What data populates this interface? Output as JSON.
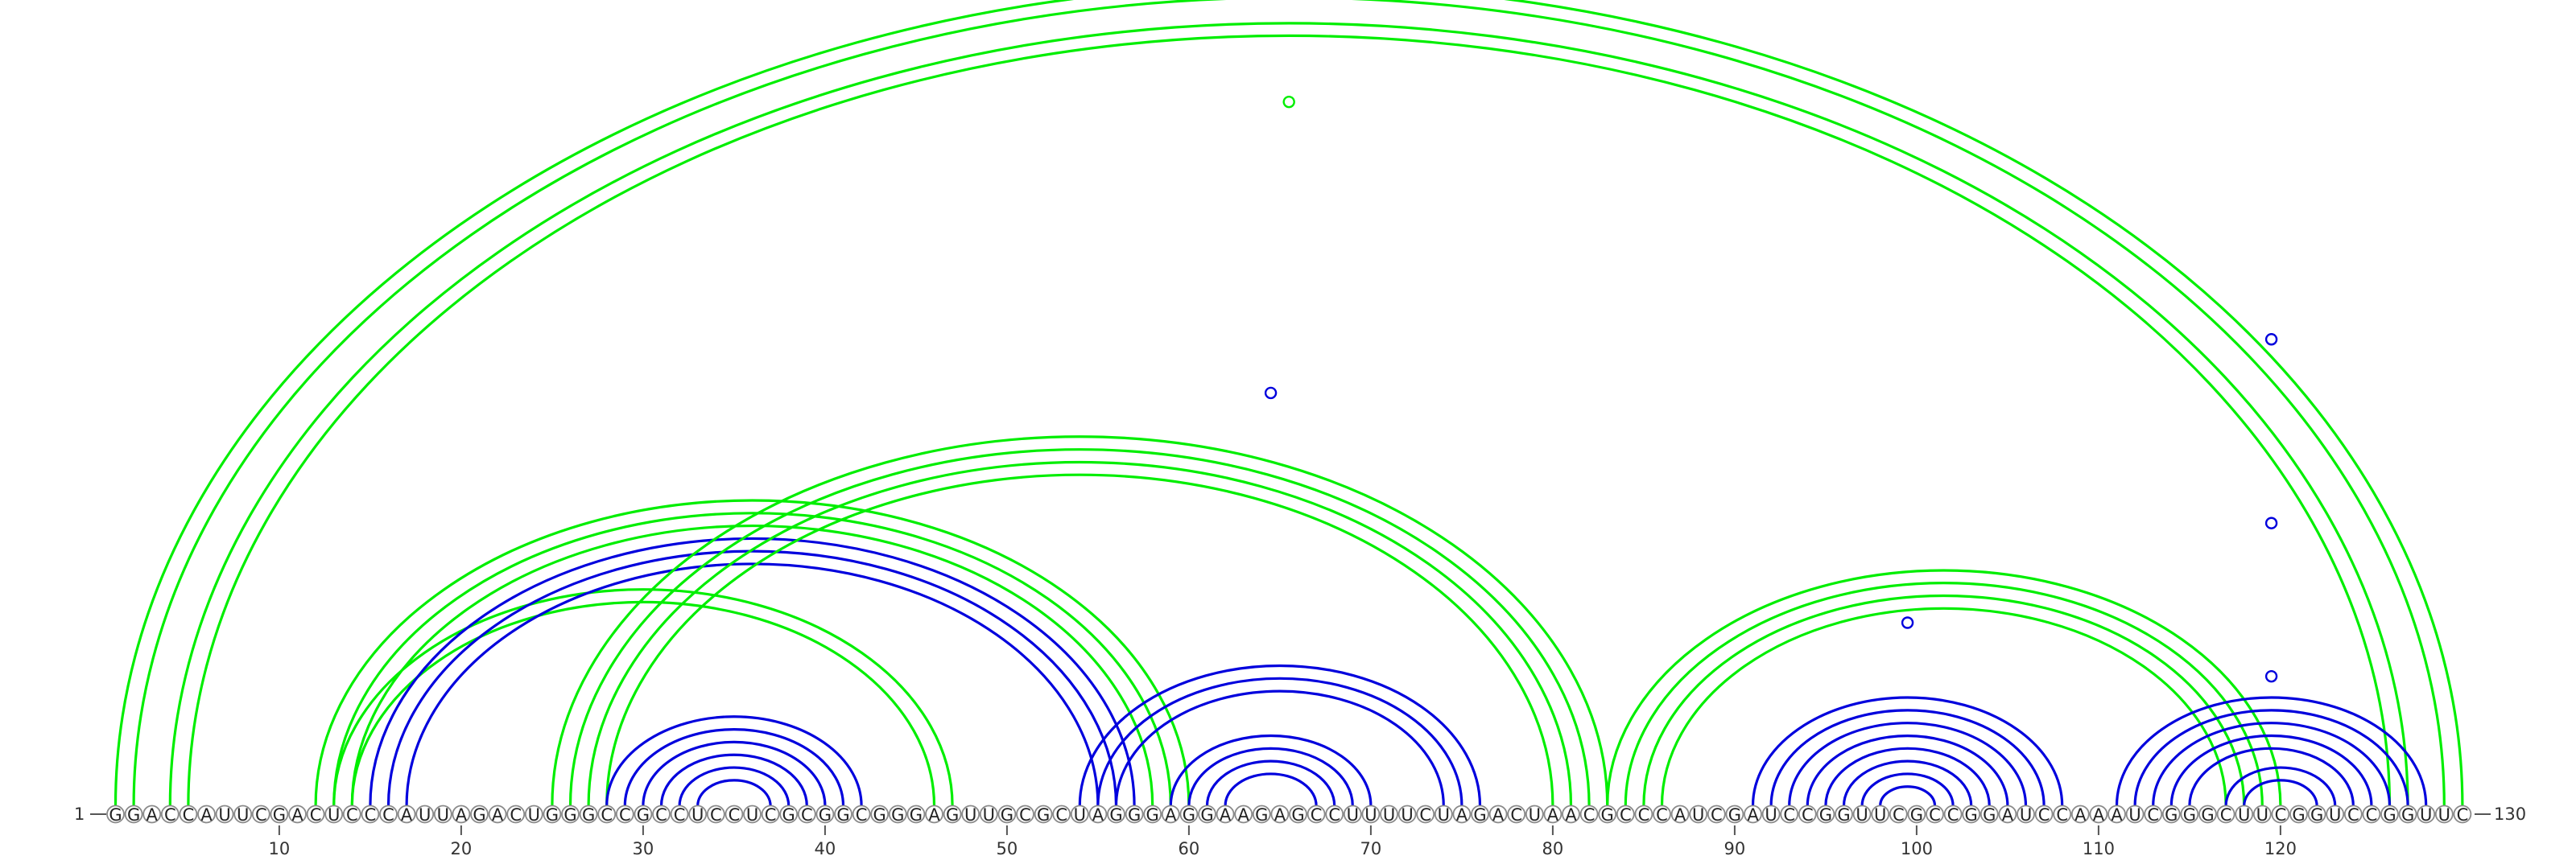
{
  "sequence": "GGACCAUUCGACUCCCAUUAGACUGGGCCGCCUCCUCGCGGCGGGAGUUGCGCUAGGGAGGAAGAGCCUUUUCUAGACUAACGCCCAUCGAUCCGGUUCGCCGGAUCCAAAUCGGGCUUCGGUCCGGUUC",
  "start_label": "1",
  "end_label": "130",
  "ticks": [
    10,
    20,
    30,
    40,
    50,
    60,
    70,
    80,
    90,
    100,
    110,
    120
  ],
  "colors": {
    "green": "#00ee00",
    "blue": "#0000dd"
  },
  "helices": [
    {
      "color": "green",
      "pairs": [
        [
          1,
          130
        ],
        [
          2,
          129
        ],
        [
          4,
          127
        ],
        [
          5,
          126
        ]
      ]
    },
    {
      "color": "green",
      "pairs": [
        [
          12,
          60
        ],
        [
          13,
          59
        ],
        [
          14,
          58
        ]
      ]
    },
    {
      "color": "green",
      "pairs": [
        [
          13,
          47
        ],
        [
          14,
          46
        ]
      ]
    },
    {
      "color": "blue",
      "pairs": [
        [
          15,
          57
        ],
        [
          16,
          56
        ],
        [
          17,
          55
        ]
      ]
    },
    {
      "color": "green",
      "pairs": [
        [
          25,
          83
        ],
        [
          26,
          82
        ],
        [
          27,
          81
        ],
        [
          28,
          80
        ]
      ]
    },
    {
      "color": "blue",
      "pairs": [
        [
          28,
          42
        ],
        [
          29,
          41
        ],
        [
          30,
          40
        ],
        [
          31,
          39
        ],
        [
          32,
          38
        ],
        [
          33,
          37
        ]
      ]
    },
    {
      "color": "blue",
      "pairs": [
        [
          54,
          76
        ],
        [
          55,
          75
        ],
        [
          56,
          74
        ],
        [
          59,
          70
        ],
        [
          60,
          69
        ],
        [
          61,
          68
        ],
        [
          62,
          67
        ]
      ]
    },
    {
      "color": "green",
      "pairs": [
        [
          83,
          120
        ],
        [
          84,
          119
        ],
        [
          85,
          118
        ],
        [
          86,
          117
        ]
      ]
    },
    {
      "color": "blue",
      "pairs": [
        [
          91,
          108
        ],
        [
          92,
          107
        ],
        [
          93,
          106
        ],
        [
          94,
          105
        ],
        [
          95,
          104
        ],
        [
          96,
          103
        ],
        [
          97,
          102
        ],
        [
          98,
          101
        ]
      ]
    },
    {
      "color": "blue",
      "pairs": [
        [
          111,
          128
        ],
        [
          112,
          127
        ],
        [
          113,
          126
        ],
        [
          114,
          125
        ],
        [
          115,
          124
        ],
        [
          117,
          123
        ],
        [
          118,
          122
        ]
      ]
    }
  ],
  "markers": [
    {
      "pos": 65.5,
      "level": 0.93,
      "color": "green"
    },
    {
      "pos": 64.5,
      "level": 0.55,
      "color": "blue"
    },
    {
      "pos": 99.5,
      "level": 0.25,
      "color": "blue"
    },
    {
      "pos": 119.5,
      "level": 0.62,
      "color": "blue"
    },
    {
      "pos": 119.5,
      "level": 0.38,
      "color": "blue"
    },
    {
      "pos": 119.5,
      "level": 0.18,
      "color": "blue"
    }
  ]
}
